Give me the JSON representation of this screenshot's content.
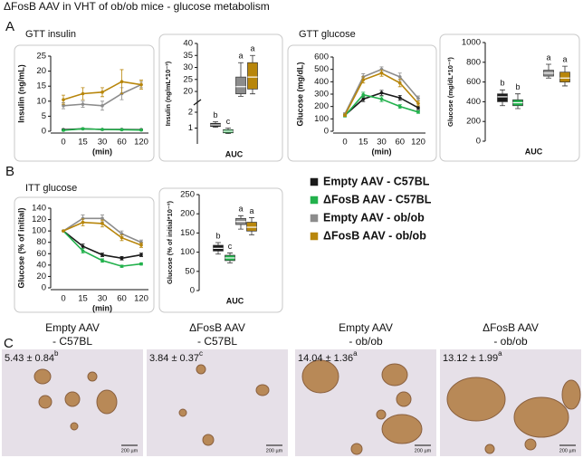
{
  "title": "ΔFosB AAV in VHT of ob/ob mice - glucose metabolism",
  "panel_labels": [
    "A",
    "B",
    "C"
  ],
  "legend": [
    {
      "name": "Empty AAV - C57BL",
      "color": "#1a1a1a"
    },
    {
      "name": "ΔFosB AAV - C57BL",
      "color": "#22b14c"
    },
    {
      "name": "Empty AAV - ob/ob",
      "color": "#8c8c8c"
    },
    {
      "name": "ΔFosB AAV - ob/ob",
      "color": "#b8860b"
    }
  ],
  "chart_data": [
    {
      "type": "line",
      "title": "GTT insulin",
      "ylabel": "Insulin (ng/mL)",
      "xlabel": "(min)",
      "categories": [
        "0",
        "15",
        "30",
        "60",
        "120"
      ],
      "ylim": [
        0,
        25
      ],
      "yticks": [
        0,
        5,
        10,
        15,
        20,
        25
      ],
      "series": [
        {
          "color": "#1a1a1a",
          "values": [
            0.5,
            0.8,
            0.6,
            0.6,
            0.5
          ],
          "errors": [
            0.2,
            0.2,
            0.2,
            0.2,
            0.2
          ]
        },
        {
          "color": "#22b14c",
          "values": [
            0.3,
            0.8,
            0.6,
            0.5,
            0.4
          ],
          "errors": [
            0.2,
            0.2,
            0.2,
            0.2,
            0.2
          ]
        },
        {
          "color": "#8c8c8c",
          "values": [
            8.5,
            9,
            8.5,
            12.5,
            15.5
          ],
          "errors": [
            1,
            1,
            1.5,
            2,
            1
          ]
        },
        {
          "color": "#b8860b",
          "values": [
            10.5,
            12.5,
            13,
            16.5,
            15.5
          ],
          "errors": [
            1.5,
            2,
            1.5,
            4,
            1.5
          ]
        }
      ]
    },
    {
      "type": "box",
      "ylabel": "Insulin (ng/mL*10⁻³)",
      "xlabel": "AUC",
      "ylim": [
        0,
        40
      ],
      "axis_break": [
        2.4,
        17
      ],
      "yticks": [
        1,
        2,
        20,
        25,
        30,
        35,
        40
      ],
      "boxes": [
        {
          "color": "#1a1a1a",
          "min": 1.05,
          "q1": 1.1,
          "median": 1.2,
          "q3": 1.3,
          "max": 1.4,
          "letter": "b"
        },
        {
          "color": "#22b14c",
          "min": 0.65,
          "q1": 0.7,
          "median": 0.8,
          "q3": 0.9,
          "max": 1,
          "letter": "c"
        },
        {
          "color": "#8c8c8c",
          "min": 18,
          "q1": 19,
          "median": 22,
          "q3": 26,
          "max": 32,
          "letter": "a"
        },
        {
          "color": "#b8860b",
          "min": 19,
          "q1": 21,
          "median": 26,
          "q3": 32,
          "max": 35,
          "letter": "a"
        }
      ]
    },
    {
      "type": "line",
      "title": "GTT glucose",
      "ylabel": "Glucose (mg/dL)",
      "xlabel": "(min)",
      "categories": [
        "0",
        "15",
        "30",
        "60",
        "120"
      ],
      "ylim": [
        0,
        600
      ],
      "yticks": [
        0,
        100,
        200,
        300,
        400,
        500,
        600
      ],
      "series": [
        {
          "color": "#1a1a1a",
          "values": [
            130,
            260,
            310,
            270,
            190
          ],
          "errors": [
            10,
            20,
            20,
            20,
            15
          ]
        },
        {
          "color": "#22b14c",
          "values": [
            125,
            295,
            260,
            200,
            155
          ],
          "errors": [
            10,
            20,
            20,
            15,
            10
          ]
        },
        {
          "color": "#8c8c8c",
          "values": [
            140,
            440,
            500,
            440,
            265
          ],
          "errors": [
            10,
            25,
            20,
            30,
            20
          ]
        },
        {
          "color": "#b8860b",
          "values": [
            130,
            415,
            470,
            390,
            225
          ],
          "errors": [
            10,
            25,
            25,
            30,
            20
          ]
        }
      ]
    },
    {
      "type": "box",
      "ylabel": "Glucose (mg/dL*10⁻³)",
      "xlabel": "AUC",
      "ylim": [
        0,
        1000
      ],
      "yticks": [
        0,
        200,
        400,
        600,
        800,
        1000
      ],
      "boxes": [
        {
          "color": "#1a1a1a",
          "min": 360,
          "q1": 400,
          "median": 450,
          "q3": 480,
          "max": 520,
          "letter": "b"
        },
        {
          "color": "#22b14c",
          "min": 330,
          "q1": 360,
          "median": 390,
          "q3": 420,
          "max": 480,
          "letter": "b"
        },
        {
          "color": "#8c8c8c",
          "min": 640,
          "q1": 660,
          "median": 690,
          "q3": 720,
          "max": 780,
          "letter": "a"
        },
        {
          "color": "#b8860b",
          "min": 560,
          "q1": 600,
          "median": 640,
          "q3": 700,
          "max": 760,
          "letter": "a"
        }
      ]
    },
    {
      "type": "line",
      "title": "ITT glucose",
      "ylabel": "Glucose (% of initial)",
      "xlabel": "(min)",
      "categories": [
        "0",
        "15",
        "30",
        "60",
        "120"
      ],
      "ylim": [
        0,
        140
      ],
      "yticks": [
        0,
        20,
        40,
        60,
        80,
        100,
        120,
        140
      ],
      "series": [
        {
          "color": "#1a1a1a",
          "values": [
            100,
            73,
            58,
            52,
            58
          ],
          "errors": [
            0,
            4,
            3,
            3,
            3
          ]
        },
        {
          "color": "#22b14c",
          "values": [
            100,
            65,
            48,
            38,
            42
          ],
          "errors": [
            0,
            4,
            3,
            2,
            2
          ]
        },
        {
          "color": "#8c8c8c",
          "values": [
            100,
            122,
            122,
            95,
            80
          ],
          "errors": [
            0,
            6,
            6,
            5,
            4
          ]
        },
        {
          "color": "#b8860b",
          "values": [
            100,
            115,
            113,
            88,
            75
          ],
          "errors": [
            0,
            6,
            6,
            5,
            4
          ]
        }
      ]
    },
    {
      "type": "box",
      "ylabel": "Glucose (% of initial*10⁻³)",
      "xlabel": "AUC",
      "ylim": [
        0,
        250
      ],
      "yticks": [
        0,
        50,
        100,
        150,
        200,
        250
      ],
      "boxes": [
        {
          "color": "#1a1a1a",
          "min": 95,
          "q1": 103,
          "median": 110,
          "q3": 118,
          "max": 125,
          "letter": "b"
        },
        {
          "color": "#22b14c",
          "min": 72,
          "q1": 78,
          "median": 85,
          "q3": 92,
          "max": 98,
          "letter": "c"
        },
        {
          "color": "#8c8c8c",
          "min": 160,
          "q1": 172,
          "median": 180,
          "q3": 188,
          "max": 195,
          "letter": "a"
        },
        {
          "color": "#b8860b",
          "min": 145,
          "q1": 155,
          "median": 165,
          "q3": 178,
          "max": 190,
          "letter": "a"
        }
      ]
    }
  ],
  "images": [
    {
      "label": [
        "Empty AAV",
        "- C57BL"
      ],
      "value": "5.43 ± 0.84",
      "letter": "b",
      "scale": "200 µm"
    },
    {
      "label": [
        "ΔFosB AAV",
        "- C57BL"
      ],
      "value": "3.84 ± 0.37",
      "letter": "c",
      "scale": "200 µm"
    },
    {
      "label": [
        "Empty AAV",
        "- ob/ob"
      ],
      "value": "14.04 ± 1.36",
      "letter": "a",
      "scale": "200 µm"
    },
    {
      "label": [
        "ΔFosB AAV",
        "- ob/ob"
      ],
      "value": "13.12 ± 1.99",
      "letter": "a",
      "scale": "200 µm"
    }
  ]
}
